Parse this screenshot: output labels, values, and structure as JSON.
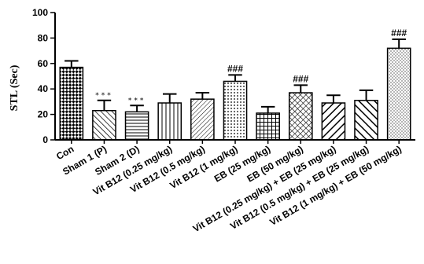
{
  "chart_data": {
    "type": "bar",
    "ylabel": "STL (Sec)",
    "ylim": [
      0,
      100
    ],
    "yticks": [
      0,
      20,
      40,
      60,
      80,
      100
    ],
    "categories": [
      "Con",
      "Sham 1 (P)",
      "Sham 2 (D)",
      "Vit B12 (0.25 mg/kg)",
      "Vit B12 (0.5 mg/kg)",
      "Vit B12 (1 mg/kg)",
      "EB (25 mg/kg)",
      "EB (50 mg/kg)",
      "Vit B12 (0.25 mg/kg) + EB (25 mg/kg)",
      "Vit B12 (0.5 mg/kg) + EB (25 mg/kg)",
      "Vit B12 (1 mg/kg) + EB (50 mg/kg)"
    ],
    "values": [
      57,
      23,
      22,
      29,
      32,
      46,
      21,
      37,
      29,
      31,
      72
    ],
    "errors": [
      5,
      8,
      5,
      7,
      5,
      5,
      5,
      6,
      6,
      8,
      7
    ],
    "annotations": [
      "",
      "***",
      "***",
      "",
      "",
      "###",
      "",
      "###",
      "",
      "",
      "###"
    ],
    "patterns": [
      "checker-diagonal",
      "diagonal-left",
      "horizontal-lines",
      "vertical-lines",
      "diagonal-right-dense",
      "dots",
      "grid",
      "hatch",
      "diagonal-right-thick",
      "diagonal-left-thick",
      "fine-dots"
    ],
    "grid": false,
    "legend": "none"
  }
}
